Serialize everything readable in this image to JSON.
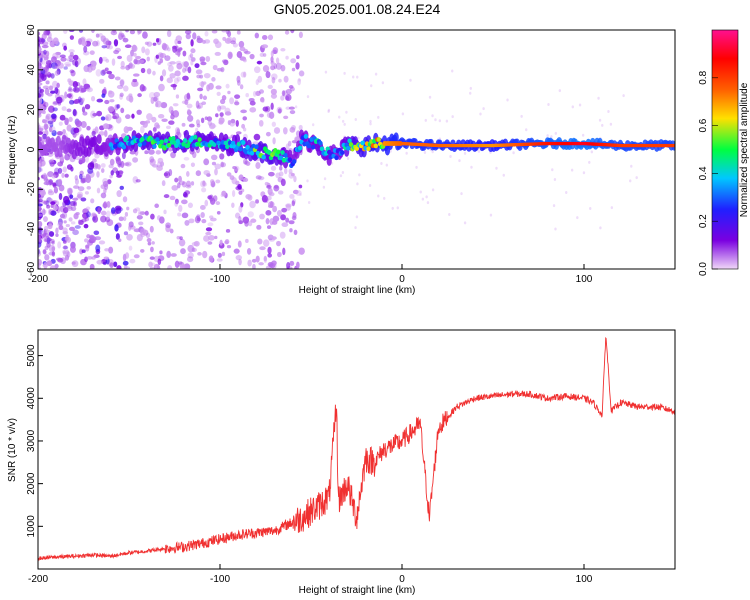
{
  "title": "GN05.2025.001.08.24.E24",
  "chart_data": [
    {
      "type": "heatmap",
      "title": "",
      "xlabel": "Height of straight line (km)",
      "ylabel": "Frequency (Hz)",
      "xlim": [
        -200,
        150
      ],
      "ylim": [
        -60,
        60
      ],
      "xticks": [
        -200,
        -100,
        0,
        100
      ],
      "yticks": [
        60,
        40,
        20,
        0,
        -20,
        -40,
        -60
      ],
      "colorbar": {
        "label": "Normalized spectral amplitude",
        "range": [
          0,
          1
        ],
        "ticks": [
          0.0,
          0.2,
          0.4,
          0.6,
          0.8
        ],
        "colormap": [
          "#f0d8f8",
          "#7a00e0",
          "#2020ff",
          "#00c8ff",
          "#00ff40",
          "#ffe000",
          "#ff6000",
          "#ff0000",
          "#ff1090"
        ]
      },
      "ridge": {
        "x": [
          -200,
          -190,
          -180,
          -170,
          -160,
          -150,
          -140,
          -130,
          -120,
          -110,
          -100,
          -90,
          -80,
          -70,
          -60,
          -55,
          -50,
          -45,
          -40,
          -35,
          -30,
          -20,
          -10,
          0,
          20,
          50,
          80,
          100,
          120,
          150
        ],
        "y": [
          2,
          2,
          1,
          2,
          2,
          4,
          4,
          3,
          4,
          4,
          3,
          2,
          -1,
          -2,
          -6,
          5,
          4,
          2,
          -3,
          -2,
          2,
          2,
          3,
          3,
          2,
          2,
          3,
          3,
          2,
          2
        ],
        "amplitude": [
          0.15,
          0.2,
          0.3,
          0.35,
          0.3,
          0.4,
          0.45,
          0.45,
          0.45,
          0.45,
          0.4,
          0.4,
          0.5,
          0.5,
          0.3,
          0.35,
          0.35,
          0.4,
          0.35,
          0.3,
          0.45,
          0.6,
          0.7,
          0.75,
          0.75,
          0.7,
          0.85,
          0.9,
          0.8,
          0.8
        ]
      }
    },
    {
      "type": "line",
      "title": "",
      "xlabel": "Height of straight line (km)",
      "ylabel": "SNR (10 * v/v)",
      "xlim": [
        -200,
        150
      ],
      "ylim": [
        0,
        5600
      ],
      "xticks": [
        -200,
        -100,
        0,
        100
      ],
      "yticks": [
        1000,
        2000,
        3000,
        4000,
        5000
      ],
      "color": "#f03030",
      "series": [
        {
          "name": "",
          "x": [
            -200,
            -190,
            -180,
            -170,
            -160,
            -150,
            -140,
            -130,
            -120,
            -110,
            -100,
            -90,
            -80,
            -70,
            -60,
            -55,
            -50,
            -45,
            -40,
            -36,
            -35,
            -30,
            -25,
            -20,
            -15,
            -10,
            0,
            5,
            10,
            15,
            20,
            30,
            40,
            50,
            60,
            70,
            80,
            90,
            100,
            105,
            110,
            112,
            115,
            120,
            130,
            140,
            150
          ],
          "y": [
            250,
            280,
            300,
            330,
            300,
            380,
            420,
            480,
            520,
            600,
            700,
            800,
            850,
            900,
            1100,
            1200,
            1350,
            1500,
            1700,
            3900,
            1600,
            2000,
            1200,
            2600,
            2500,
            2800,
            3000,
            3200,
            3400,
            1200,
            3300,
            3800,
            4000,
            4050,
            4100,
            4100,
            4000,
            4050,
            4000,
            3900,
            3600,
            5500,
            3700,
            3900,
            3800,
            3800,
            3700
          ]
        }
      ]
    }
  ]
}
